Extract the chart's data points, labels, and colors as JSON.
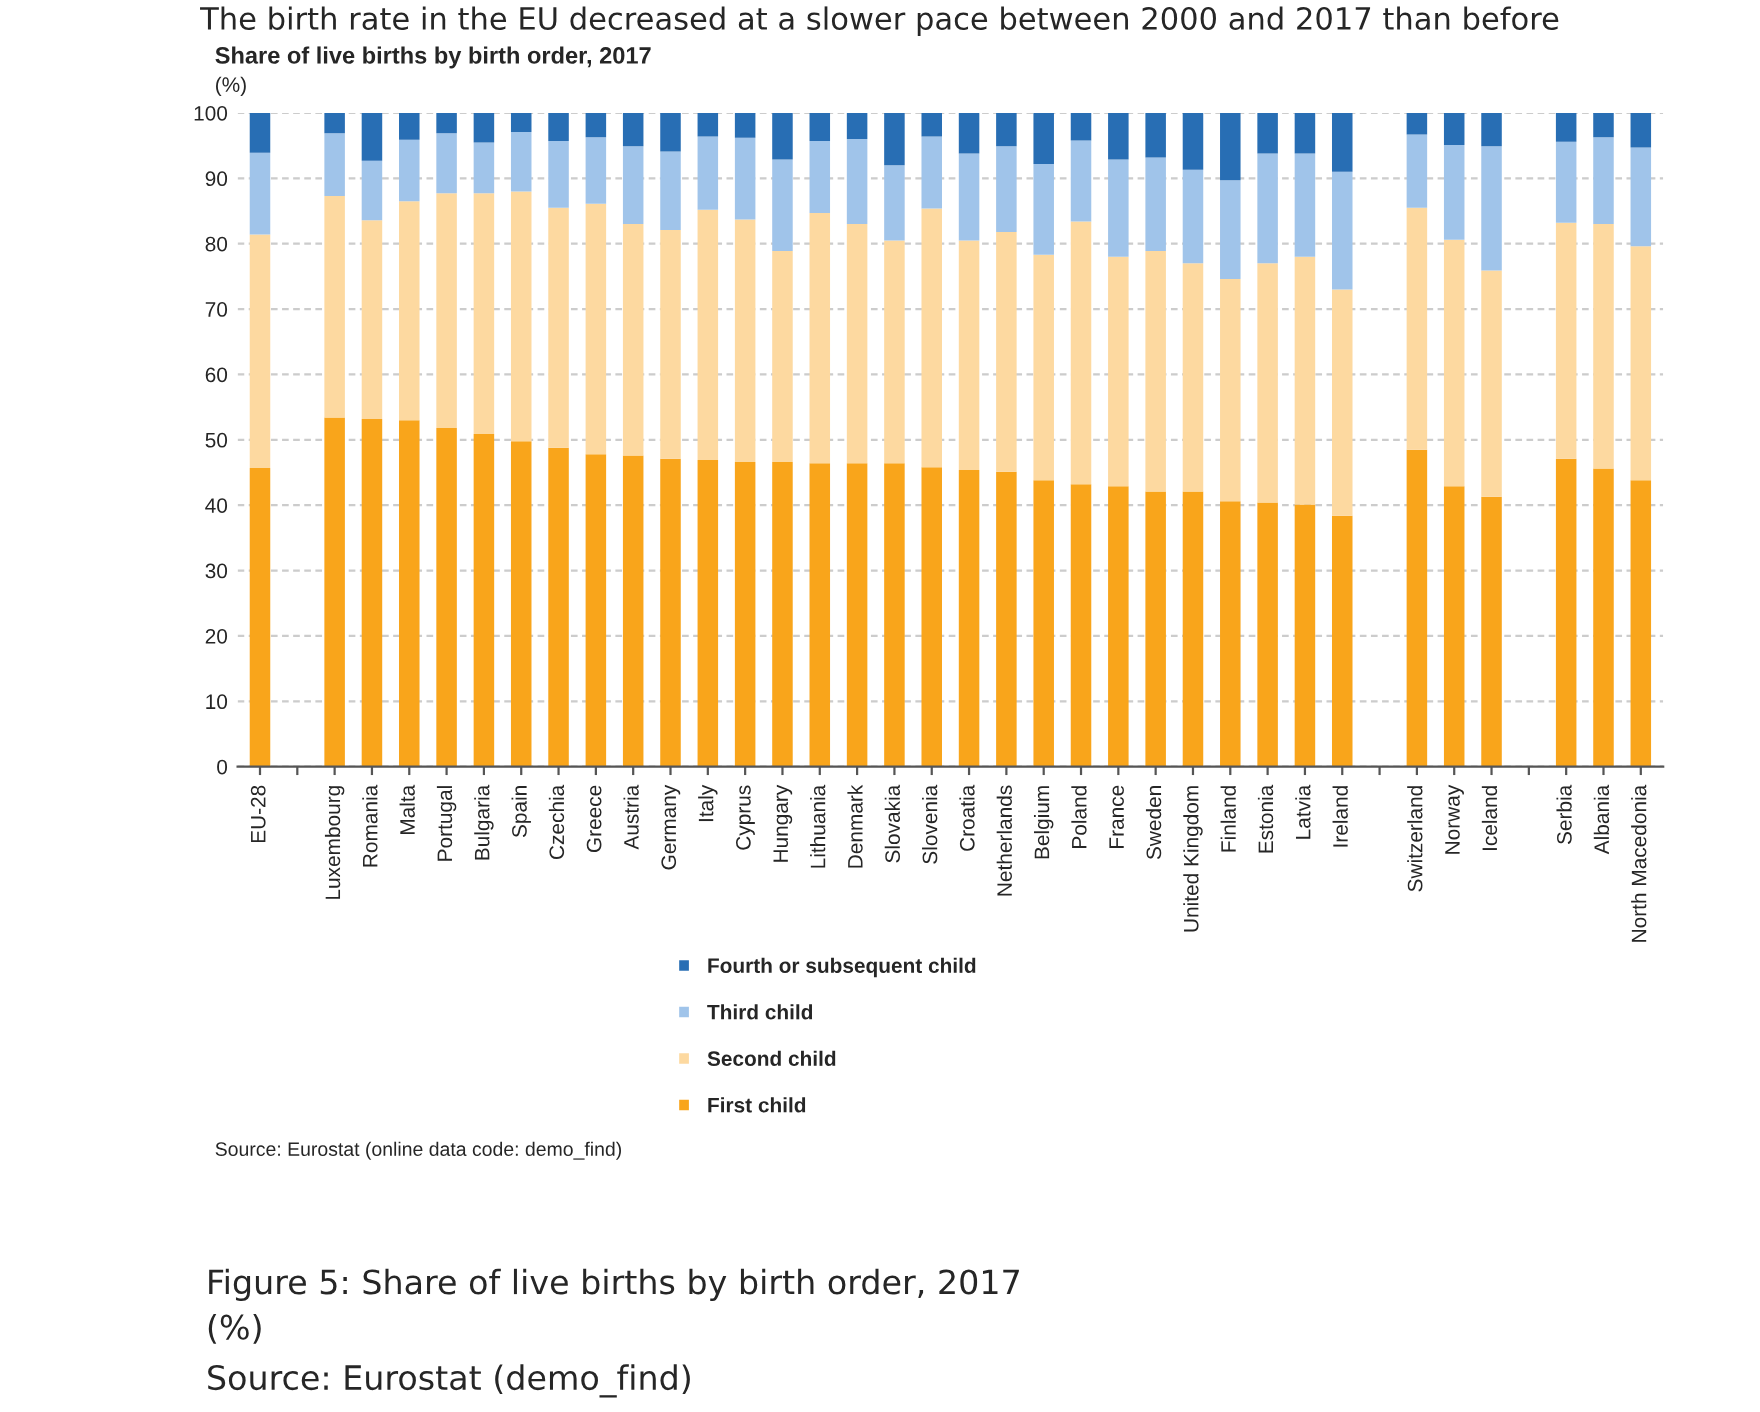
{
  "chart_data": {
    "type": "bar",
    "stacked": true,
    "title": "Share of live births by birth order, 2017",
    "subtitle": "(%)",
    "categories": [
      "EU-28",
      null,
      "Luxembourg",
      "Romania",
      "Malta",
      "Portugal",
      "Bulgaria",
      "Spain",
      "Czechia",
      "Greece",
      "Austria",
      "Germany",
      "Italy",
      "Cyprus",
      "Hungary",
      "Lithuania",
      "Denmark",
      "Slovakia",
      "Slovenia",
      "Croatia",
      "Netherlands",
      "Belgium",
      "Poland",
      "France",
      "Sweden",
      "United Kingdom",
      "Finland",
      "Estonia",
      "Latvia",
      "Ireland",
      null,
      "Switzerland",
      "Norway",
      "Iceland",
      null,
      "Serbia",
      "Albania",
      "North Macedonia"
    ],
    "series": [
      {
        "name": "First child",
        "color": "#f9a51b",
        "values": [
          45.7,
          null,
          53.4,
          53.2,
          53.0,
          51.8,
          50.9,
          49.8,
          48.8,
          47.8,
          47.6,
          47.1,
          46.9,
          46.6,
          46.6,
          46.4,
          46.4,
          46.4,
          45.8,
          45.4,
          45.1,
          43.8,
          43.2,
          42.9,
          42.1,
          42.1,
          40.6,
          40.4,
          40.1,
          38.4,
          null,
          48.5,
          42.9,
          41.3,
          null,
          47.1,
          45.6,
          43.8
        ]
      },
      {
        "name": "Second child",
        "color": "#fdd9a0",
        "values": [
          35.7,
          null,
          33.9,
          30.4,
          33.5,
          35.9,
          36.8,
          38.2,
          36.7,
          38.3,
          35.4,
          35.0,
          38.3,
          37.1,
          32.3,
          38.3,
          36.6,
          34.1,
          39.6,
          35.1,
          36.7,
          34.5,
          40.2,
          35.1,
          36.8,
          34.9,
          34.0,
          36.6,
          37.9,
          34.6,
          null,
          37.0,
          37.7,
          34.6,
          null,
          36.1,
          37.4,
          35.8
        ]
      },
      {
        "name": "Third child",
        "color": "#a0c4ea",
        "values": [
          12.5,
          null,
          9.6,
          9.1,
          9.4,
          9.2,
          7.8,
          9.1,
          10.2,
          10.2,
          11.9,
          12.0,
          11.2,
          12.5,
          14.0,
          11.0,
          13.0,
          11.5,
          11.0,
          13.3,
          13.1,
          13.9,
          12.4,
          14.9,
          14.3,
          14.3,
          15.1,
          16.8,
          15.8,
          18.0,
          null,
          11.2,
          14.5,
          19.0,
          null,
          12.4,
          13.3,
          15.1
        ]
      },
      {
        "name": "Fourth or subsequent child",
        "color": "#286eb4",
        "values": [
          6.1,
          null,
          3.1,
          7.3,
          4.1,
          3.1,
          4.5,
          2.9,
          4.3,
          3.7,
          5.1,
          5.9,
          3.6,
          3.8,
          7.1,
          4.3,
          4.0,
          8.0,
          3.6,
          6.2,
          5.1,
          7.8,
          4.2,
          7.1,
          6.8,
          8.7,
          10.3,
          6.2,
          6.2,
          9.0,
          null,
          3.3,
          4.9,
          5.1,
          null,
          4.4,
          3.7,
          5.3
        ]
      }
    ],
    "ylim": [
      0,
      100
    ],
    "yticks": [
      0,
      10,
      20,
      30,
      40,
      50,
      60,
      70,
      80,
      90,
      100
    ],
    "grid": "y",
    "legend": "bottom",
    "annotations": [
      "The birth rate in the EU decreased at a slower pace between 2000 and 2017 than before",
      "Source: Eurostat (online data code: demo_find)",
      "Figure 5: Share of live births by birth order, 2017",
      "(%)",
      "Source: Eurostat (demo_find)"
    ]
  }
}
